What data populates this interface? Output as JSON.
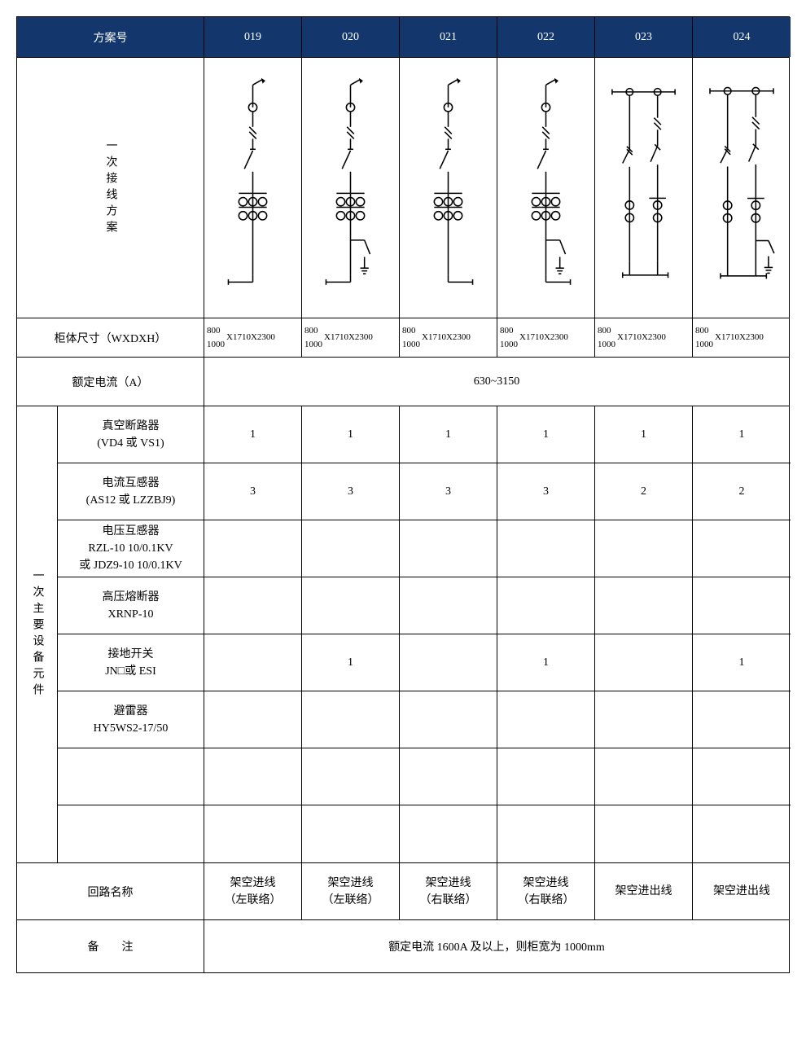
{
  "header": {
    "scheme_no": "方案号",
    "codes": [
      "019",
      "020",
      "021",
      "022",
      "023",
      "024"
    ]
  },
  "wiring_label": "一次接线方案",
  "schematics": {
    "codes": [
      "019",
      "020",
      "021",
      "022",
      "023",
      "024"
    ],
    "busbar": {
      "023": true,
      "024": true
    },
    "grounding_switch": {
      "020": true,
      "022": true,
      "024": true
    },
    "ct_six": {
      "019": true,
      "020": true,
      "021": true,
      "022": true
    },
    "dual_branch": {
      "023": true,
      "024": true
    }
  },
  "dimensions": {
    "label": "柜体尺寸（WXDXH）",
    "values": [
      {
        "pre": [
          "800",
          "1000"
        ],
        "suf": "X1710X2300"
      },
      {
        "pre": [
          "800",
          "1000"
        ],
        "suf": "X1710X2300"
      },
      {
        "pre": [
          "800",
          "1000"
        ],
        "suf": "X1710X2300"
      },
      {
        "pre": [
          "800",
          "1000"
        ],
        "suf": "X1710X2300"
      },
      {
        "pre": [
          "800",
          "1000"
        ],
        "suf": "X1710X2300"
      },
      {
        "pre": [
          "800",
          "1000"
        ],
        "suf": "X1710X2300"
      }
    ]
  },
  "rated_current": {
    "label": "额定电流（A）",
    "value": "630~3150"
  },
  "equipment_label": "一次主要设备元件",
  "equipment_rows": [
    {
      "label_lines": [
        "真空断路器",
        "(VD4 或 VS1)"
      ],
      "values": [
        "1",
        "1",
        "1",
        "1",
        "1",
        "1"
      ]
    },
    {
      "label_lines": [
        "电流互感器",
        "(AS12 或 LZZBJ9)"
      ],
      "values": [
        "3",
        "3",
        "3",
        "3",
        "2",
        "2"
      ]
    },
    {
      "label_lines": [
        "电压互感器",
        "RZL-10 10/0.1KV",
        "或 JDZ9-10 10/0.1KV"
      ],
      "values": [
        "",
        "",
        "",
        "",
        "",
        ""
      ]
    },
    {
      "label_lines": [
        "高压熔断器",
        "XRNP-10"
      ],
      "values": [
        "",
        "",
        "",
        "",
        "",
        ""
      ]
    },
    {
      "label_lines": [
        "接地开关",
        "JN□或 ESI"
      ],
      "values": [
        "",
        "1",
        "",
        "1",
        "",
        "1"
      ]
    },
    {
      "label_lines": [
        "避雷器",
        "HY5WS2-17/50"
      ],
      "values": [
        "",
        "",
        "",
        "",
        "",
        ""
      ]
    },
    {
      "label_lines": [
        ""
      ],
      "values": [
        "",
        "",
        "",
        "",
        "",
        ""
      ]
    },
    {
      "label_lines": [
        ""
      ],
      "values": [
        "",
        "",
        "",
        "",
        "",
        ""
      ]
    }
  ],
  "circuit_name": {
    "label": "回路名称",
    "values": [
      [
        "架空进线",
        "（左联络）"
      ],
      [
        "架空进线",
        "（左联络）"
      ],
      [
        "架空进线",
        "（右联络）"
      ],
      [
        "架空进线",
        "（右联络）"
      ],
      [
        "架空进出线"
      ],
      [
        "架空进出线"
      ]
    ]
  },
  "remark": {
    "label": "备　　注",
    "value": "额定电流 1600A 及以上，则柜宽为 1000mm"
  },
  "style": {
    "header_bg": "#13376c",
    "header_fg": "#ffffff",
    "stroke": "#000000",
    "row_height_header": 50,
    "row_height_equip": 70,
    "row_height_small": 48
  }
}
